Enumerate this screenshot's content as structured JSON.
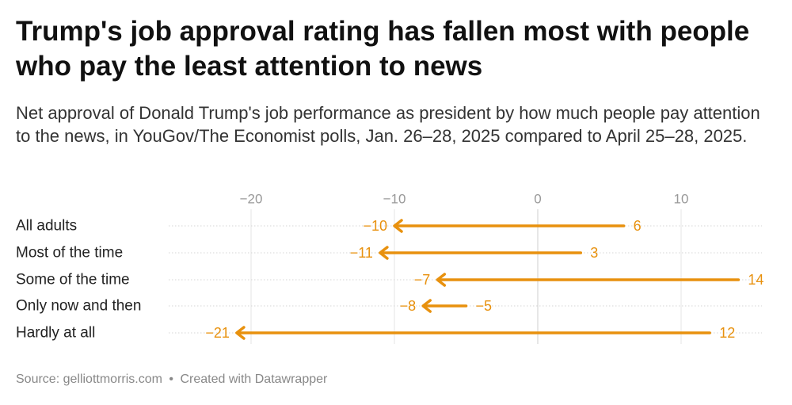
{
  "title": "Trump's job approval rating has fallen most with people who pay the least attention to news",
  "subtitle": "Net approval of Donald Trump's job performance as president by how much people pay attention to the news, in YouGov/The Economist polls, Jan. 26–28, 2025 compared to April 25–28, 2025.",
  "footer": {
    "source": "Source: gelliottmorris.com",
    "separator": "•",
    "credit": "Created with Datawrapper"
  },
  "chart_data": {
    "type": "arrow",
    "x_ticks": [
      -20,
      -10,
      0,
      10
    ],
    "x_tick_labels": [
      "−20",
      "−10",
      "0",
      "10"
    ],
    "xlim": [
      -25,
      15
    ],
    "grid": true,
    "arrow_color": "#E8910E",
    "categories": [
      "All adults",
      "Most of the time",
      "Some of the time",
      "Only now and then",
      "Hardly at all"
    ],
    "start_values": [
      6,
      3,
      14,
      -5,
      12
    ],
    "end_values": [
      -10,
      -11,
      -7,
      -8,
      -21
    ],
    "start_labels": [
      "6",
      "3",
      "14",
      "−5",
      "12"
    ],
    "end_labels": [
      "−10",
      "−11",
      "−7",
      "−8",
      "−21"
    ]
  }
}
